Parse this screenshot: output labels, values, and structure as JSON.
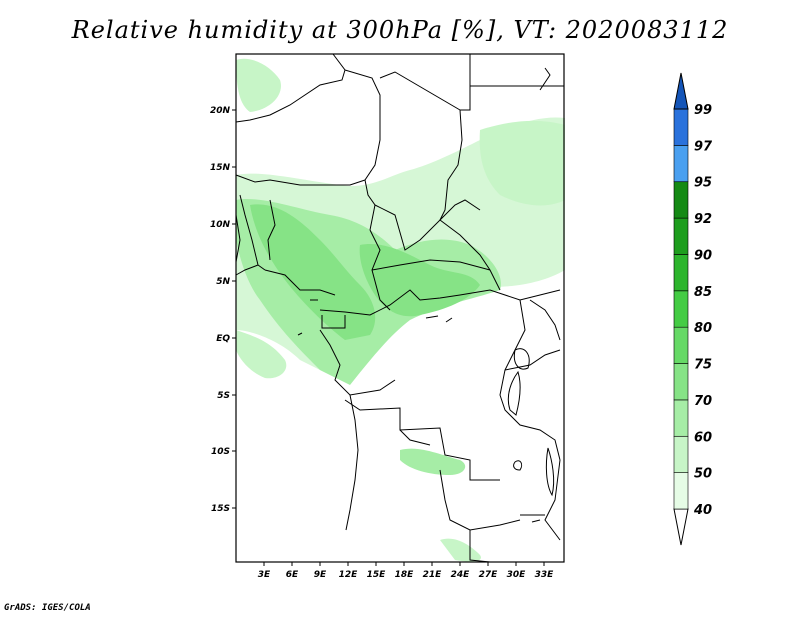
{
  "title": "Relative humidity at 300hPa [%], VT: 2020083112",
  "credit": "GrADS: IGES/COLA",
  "map": {
    "lon_labels": [
      "3E",
      "6E",
      "9E",
      "12E",
      "15E",
      "18E",
      "21E",
      "24E",
      "27E",
      "30E",
      "33E"
    ],
    "lat_labels": [
      "20N",
      "15N",
      "10N",
      "5N",
      "EQ",
      "5S",
      "10S",
      "15S"
    ]
  },
  "colorbar": {
    "levels": [
      "40",
      "50",
      "60",
      "70",
      "75",
      "80",
      "85",
      "90",
      "92",
      "95",
      "97",
      "99"
    ],
    "colors": [
      "#ffffff",
      "#e6fce6",
      "#c7f5c7",
      "#a6eda6",
      "#86e386",
      "#66d966",
      "#44cc44",
      "#2db52d",
      "#1e9e1e",
      "#158a15",
      "#4aa0f0",
      "#2a72dc",
      "#1455b8"
    ]
  }
}
